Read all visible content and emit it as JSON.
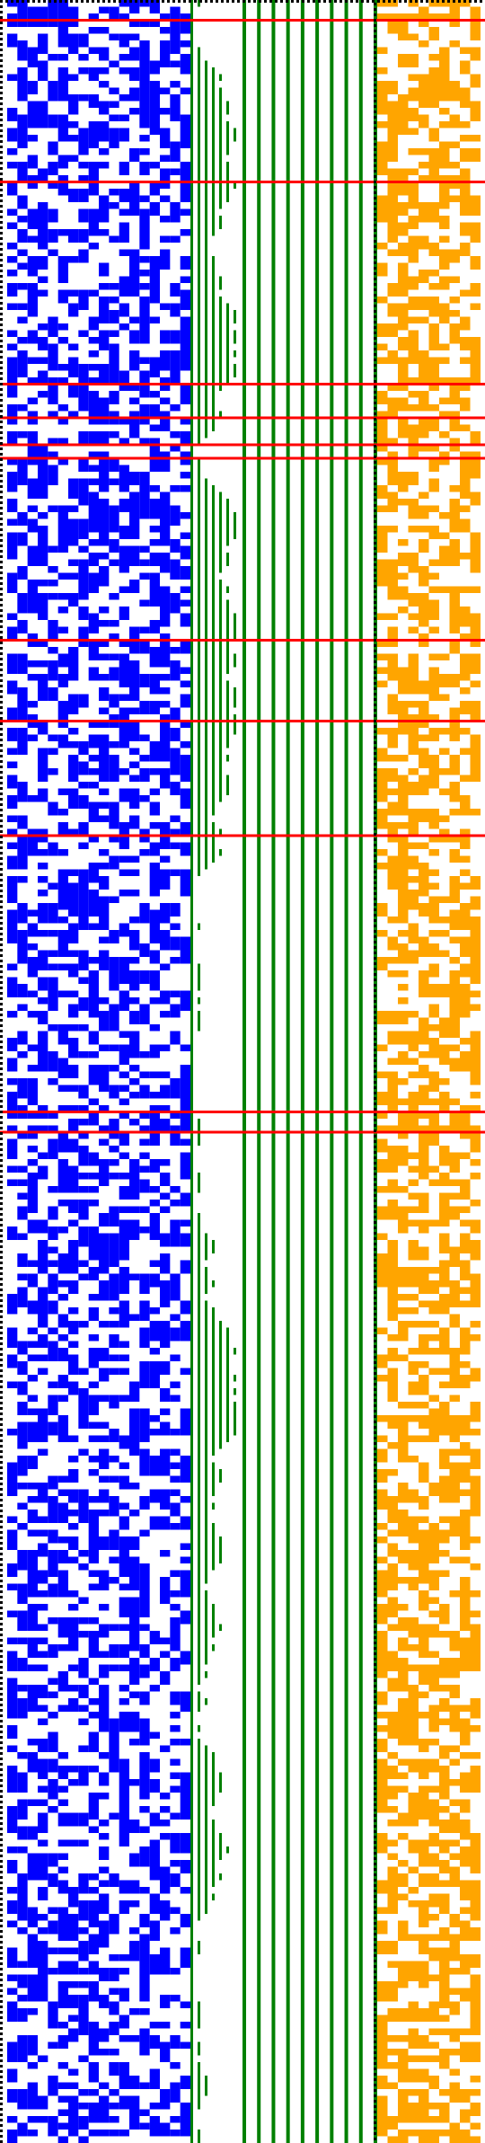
{
  "figure": {
    "description_free": true,
    "colors": {
      "background": "#ffffff",
      "border_dots": "#000000",
      "blue_pattern": "#0000ff",
      "green_lines": "#008000",
      "orange_pattern": "#ffa500",
      "red_lines": "#ff0000"
    },
    "grid": {
      "cell_count_rows": 318,
      "blue_columns": 18,
      "orange_columns": 10,
      "green_vertical_lines": 10,
      "red_horizontal_line_rows": [
        3,
        27,
        57,
        62,
        66,
        68,
        95,
        107,
        124,
        165,
        168
      ]
    },
    "seeds": {
      "blue": 1337,
      "orange": 4242,
      "green": 777
    },
    "densities": {
      "blue": 0.5,
      "orange": 0.55
    }
  }
}
